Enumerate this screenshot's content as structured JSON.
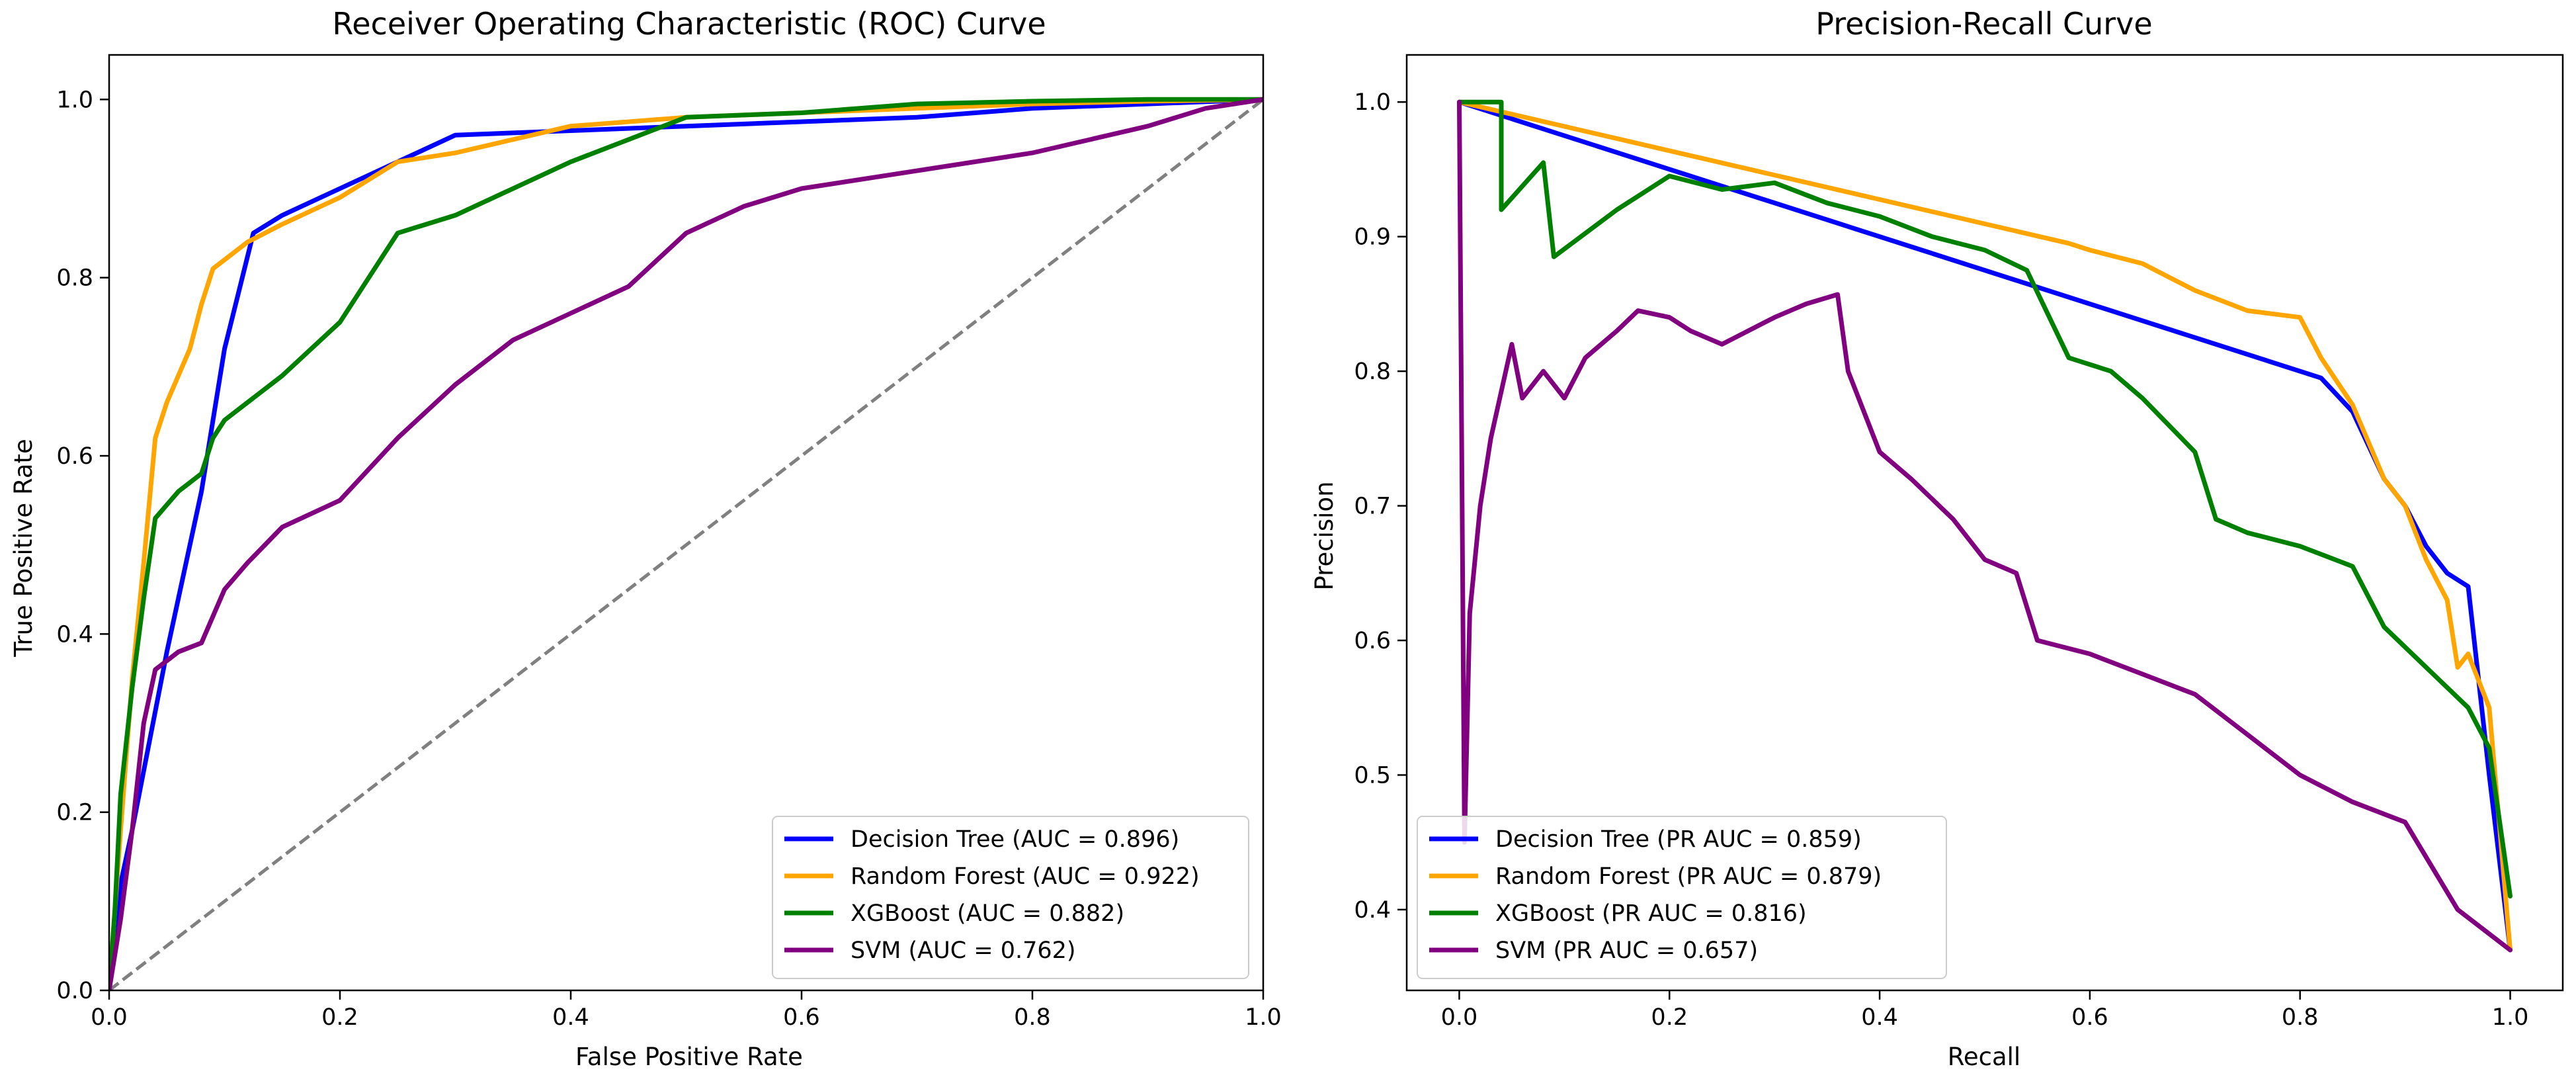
{
  "chart_data": [
    {
      "type": "line",
      "title": "Receiver Operating Characteristic (ROC) Curve",
      "xlabel": "False Positive Rate",
      "ylabel": "True Positive Rate",
      "xlim": [
        0.0,
        1.0
      ],
      "ylim": [
        0.0,
        1.05
      ],
      "xticks": [
        "0.0",
        "0.2",
        "0.4",
        "0.6",
        "0.8",
        "1.0"
      ],
      "yticks": [
        "0.0",
        "0.2",
        "0.4",
        "0.6",
        "0.8",
        "1.0"
      ],
      "legend_position": "lower-right",
      "grid": false,
      "reference_line": {
        "x": [
          0,
          1
        ],
        "y": [
          0,
          1
        ],
        "color": "#808080",
        "style": "dashed"
      },
      "series": [
        {
          "name": "Decision Tree",
          "legend": "Decision Tree (AUC = 0.896)",
          "color": "#0000ff",
          "x": [
            0,
            0.01,
            0.02,
            0.05,
            0.08,
            0.1,
            0.125,
            0.15,
            0.2,
            0.25,
            0.3,
            0.4,
            0.5,
            0.6,
            0.7,
            0.8,
            0.9,
            1.0
          ],
          "y": [
            0,
            0.12,
            0.18,
            0.38,
            0.56,
            0.72,
            0.85,
            0.87,
            0.9,
            0.93,
            0.96,
            0.965,
            0.97,
            0.975,
            0.98,
            0.99,
            0.995,
            1.0
          ]
        },
        {
          "name": "Random Forest",
          "legend": "Random Forest (AUC = 0.922)",
          "color": "#ffa500",
          "x": [
            0,
            0.01,
            0.02,
            0.03,
            0.04,
            0.05,
            0.06,
            0.07,
            0.08,
            0.09,
            0.1,
            0.12,
            0.15,
            0.2,
            0.25,
            0.3,
            0.4,
            0.5,
            0.6,
            0.7,
            0.8,
            0.9,
            1.0
          ],
          "y": [
            0,
            0.18,
            0.35,
            0.48,
            0.62,
            0.66,
            0.69,
            0.72,
            0.77,
            0.81,
            0.82,
            0.84,
            0.86,
            0.89,
            0.93,
            0.94,
            0.97,
            0.98,
            0.985,
            0.99,
            0.995,
            0.998,
            1.0
          ]
        },
        {
          "name": "XGBoost",
          "legend": "XGBoost (AUC = 0.882)",
          "color": "#008000",
          "x": [
            0,
            0.005,
            0.01,
            0.02,
            0.03,
            0.04,
            0.06,
            0.08,
            0.09,
            0.1,
            0.15,
            0.2,
            0.22,
            0.25,
            0.3,
            0.4,
            0.5,
            0.6,
            0.7,
            0.8,
            0.9,
            1.0
          ],
          "y": [
            0,
            0.09,
            0.22,
            0.34,
            0.44,
            0.53,
            0.56,
            0.58,
            0.62,
            0.64,
            0.69,
            0.75,
            0.79,
            0.85,
            0.87,
            0.93,
            0.98,
            0.985,
            0.995,
            0.998,
            1.0,
            1.0
          ]
        },
        {
          "name": "SVM",
          "legend": "SVM (AUC = 0.762)",
          "color": "#800080",
          "x": [
            0,
            0.01,
            0.02,
            0.03,
            0.04,
            0.06,
            0.08,
            0.1,
            0.12,
            0.15,
            0.2,
            0.25,
            0.3,
            0.35,
            0.4,
            0.45,
            0.5,
            0.55,
            0.6,
            0.7,
            0.8,
            0.9,
            0.95,
            1.0
          ],
          "y": [
            0,
            0.08,
            0.18,
            0.3,
            0.36,
            0.38,
            0.39,
            0.45,
            0.48,
            0.52,
            0.55,
            0.62,
            0.68,
            0.73,
            0.76,
            0.79,
            0.85,
            0.88,
            0.9,
            0.92,
            0.94,
            0.97,
            0.99,
            1.0
          ]
        }
      ]
    },
    {
      "type": "line",
      "title": "Precision-Recall Curve",
      "xlabel": "Recall",
      "ylabel": "Precision",
      "xlim": [
        -0.05,
        1.05
      ],
      "ylim": [
        0.34,
        1.035
      ],
      "xticks": [
        "0.0",
        "0.2",
        "0.4",
        "0.6",
        "0.8",
        "1.0"
      ],
      "yticks": [
        "0.4",
        "0.5",
        "0.6",
        "0.7",
        "0.8",
        "0.9",
        "1.0"
      ],
      "legend_position": "lower-left",
      "grid": false,
      "series": [
        {
          "name": "Decision Tree",
          "legend": "Decision Tree (PR AUC = 0.859)",
          "color": "#0000ff",
          "x": [
            0,
            0.82,
            0.85,
            0.88,
            0.9,
            0.92,
            0.94,
            0.96,
            0.98,
            1.0
          ],
          "y": [
            1.0,
            0.795,
            0.77,
            0.72,
            0.7,
            0.67,
            0.65,
            0.64,
            0.5,
            0.37
          ]
        },
        {
          "name": "Random Forest",
          "legend": "Random Forest (PR AUC = 0.879)",
          "color": "#ffa500",
          "x": [
            0,
            0.58,
            0.6,
            0.65,
            0.7,
            0.75,
            0.8,
            0.82,
            0.85,
            0.88,
            0.9,
            0.92,
            0.94,
            0.95,
            0.96,
            0.98,
            1.0
          ],
          "y": [
            1.0,
            0.895,
            0.89,
            0.88,
            0.86,
            0.845,
            0.84,
            0.81,
            0.775,
            0.72,
            0.7,
            0.66,
            0.63,
            0.58,
            0.59,
            0.55,
            0.37
          ]
        },
        {
          "name": "XGBoost",
          "legend": "XGBoost (PR AUC = 0.816)",
          "color": "#008000",
          "x": [
            0,
            0.04,
            0.04,
            0.08,
            0.09,
            0.15,
            0.2,
            0.25,
            0.3,
            0.35,
            0.4,
            0.45,
            0.5,
            0.54,
            0.58,
            0.62,
            0.65,
            0.7,
            0.72,
            0.75,
            0.8,
            0.85,
            0.88,
            0.92,
            0.96,
            0.98,
            1.0
          ],
          "y": [
            1.0,
            1.0,
            0.92,
            0.955,
            0.885,
            0.92,
            0.945,
            0.935,
            0.94,
            0.925,
            0.915,
            0.9,
            0.89,
            0.875,
            0.81,
            0.8,
            0.78,
            0.74,
            0.69,
            0.68,
            0.67,
            0.655,
            0.61,
            0.58,
            0.55,
            0.52,
            0.41
          ]
        },
        {
          "name": "SVM",
          "legend": "SVM (PR AUC = 0.657)",
          "color": "#800080",
          "x": [
            0,
            0.005,
            0.01,
            0.02,
            0.03,
            0.05,
            0.06,
            0.08,
            0.1,
            0.12,
            0.15,
            0.17,
            0.2,
            0.22,
            0.25,
            0.3,
            0.33,
            0.36,
            0.37,
            0.4,
            0.43,
            0.47,
            0.5,
            0.53,
            0.55,
            0.6,
            0.65,
            0.7,
            0.75,
            0.8,
            0.85,
            0.9,
            0.95,
            1.0
          ],
          "y": [
            1.0,
            0.45,
            0.62,
            0.7,
            0.75,
            0.82,
            0.78,
            0.8,
            0.78,
            0.81,
            0.83,
            0.845,
            0.84,
            0.83,
            0.82,
            0.84,
            0.85,
            0.857,
            0.8,
            0.74,
            0.72,
            0.69,
            0.66,
            0.65,
            0.6,
            0.59,
            0.575,
            0.56,
            0.53,
            0.5,
            0.48,
            0.465,
            0.4,
            0.37
          ]
        }
      ]
    }
  ]
}
